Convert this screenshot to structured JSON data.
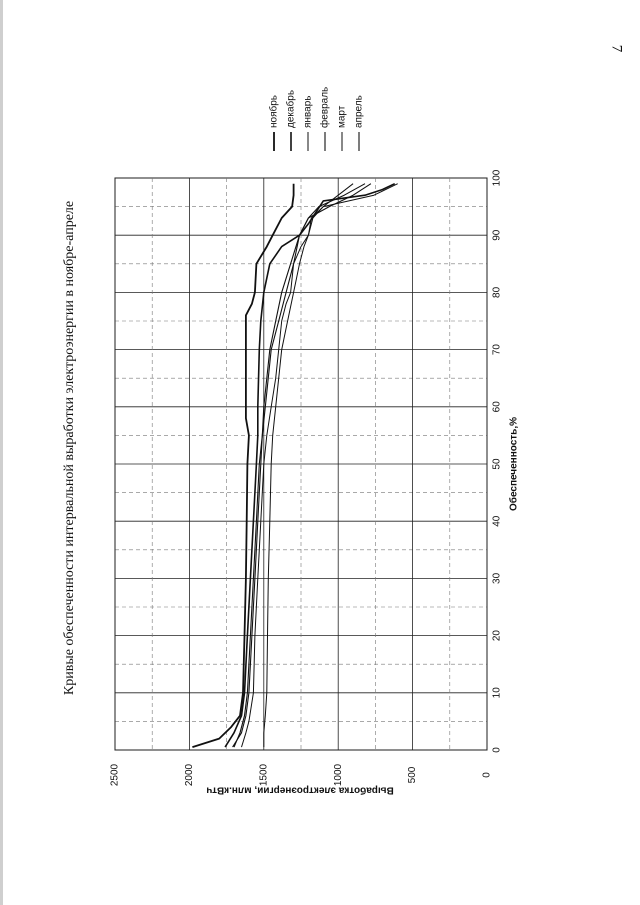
{
  "page": {
    "number": "7",
    "title": "Кривые обеспеченности интервальной выработки электроэнергии в ноябре-апреле"
  },
  "chart_data": {
    "type": "line",
    "title": "Кривые обеспеченности интервальной выработки электроэнергии в ноябре-апреле",
    "xlabel": "Обеспеченность,%",
    "ylabel": "Выработка электроэнергии, млн.кВтч",
    "xlim": [
      0,
      100
    ],
    "ylim": [
      0,
      2500
    ],
    "x_ticks": [
      "0",
      "10",
      "20",
      "30",
      "40",
      "50",
      "60",
      "70",
      "80",
      "90",
      "100"
    ],
    "y_ticks": [
      "0",
      "500",
      "1000",
      "1500",
      "2000",
      "2500"
    ],
    "grid": true,
    "legend_position": "right",
    "series": [
      {
        "name": "ноябрь",
        "color": "#111111",
        "x": [
          0.5,
          2,
          4,
          6,
          10,
          20,
          30,
          40,
          50,
          55,
          58,
          60,
          70,
          76,
          78,
          80,
          85,
          88,
          90,
          93,
          95,
          97,
          99
        ],
        "values": [
          1980,
          1800,
          1720,
          1660,
          1640,
          1630,
          1620,
          1615,
          1610,
          1600,
          1620,
          1620,
          1620,
          1620,
          1580,
          1560,
          1550,
          1480,
          1440,
          1380,
          1310,
          1300,
          1300
        ]
      },
      {
        "name": "декабрь",
        "color": "#111111",
        "x": [
          0.5,
          3,
          6,
          10,
          20,
          30,
          40,
          50,
          55,
          60,
          70,
          75,
          80,
          85,
          88,
          90,
          92,
          94,
          96,
          97,
          98,
          99
        ],
        "values": [
          1760,
          1700,
          1650,
          1630,
          1610,
          1590,
          1570,
          1550,
          1540,
          1540,
          1530,
          1520,
          1500,
          1460,
          1380,
          1260,
          1200,
          1150,
          1100,
          820,
          700,
          620
        ]
      },
      {
        "name": "январь",
        "color": "#111111",
        "x": [
          0.5,
          3,
          5,
          10,
          20,
          30,
          40,
          50,
          55,
          60,
          65,
          70,
          75,
          78,
          80,
          85,
          88,
          90,
          93,
          95,
          97,
          99
        ],
        "values": [
          1650,
          1620,
          1600,
          1570,
          1560,
          1540,
          1520,
          1500,
          1480,
          1450,
          1420,
          1400,
          1380,
          1350,
          1320,
          1300,
          1250,
          1200,
          1180,
          1100,
          760,
          600
        ]
      },
      {
        "name": "февраль",
        "color": "#111111",
        "x": [
          0.5,
          3,
          6,
          10,
          20,
          30,
          40,
          50,
          55,
          60,
          70,
          75,
          80,
          85,
          90,
          93,
          95,
          97,
          99
        ],
        "values": [
          1700,
          1660,
          1630,
          1610,
          1590,
          1570,
          1550,
          1530,
          1510,
          1490,
          1450,
          1400,
          1350,
          1300,
          1260,
          1200,
          1060,
          900,
          780
        ]
      },
      {
        "name": "март",
        "color": "#111111",
        "x": [
          0.5,
          3,
          6,
          10,
          20,
          30,
          40,
          50,
          55,
          60,
          65,
          70,
          75,
          80,
          85,
          88,
          90,
          93,
          95,
          97,
          99
        ],
        "values": [
          1500,
          1500,
          1490,
          1480,
          1475,
          1470,
          1460,
          1450,
          1440,
          1420,
          1400,
          1380,
          1340,
          1300,
          1260,
          1230,
          1200,
          1170,
          1100,
          1000,
          900
        ]
      },
      {
        "name": "апрель",
        "color": "#111111",
        "x": [
          0.5,
          3,
          6,
          10,
          20,
          30,
          40,
          50,
          55,
          60,
          65,
          70,
          75,
          80,
          85,
          90,
          93,
          95,
          97,
          99
        ],
        "values": [
          1710,
          1650,
          1620,
          1600,
          1580,
          1560,
          1540,
          1520,
          1510,
          1500,
          1480,
          1460,
          1420,
          1380,
          1320,
          1260,
          1200,
          1130,
          960,
          820
        ]
      }
    ]
  }
}
